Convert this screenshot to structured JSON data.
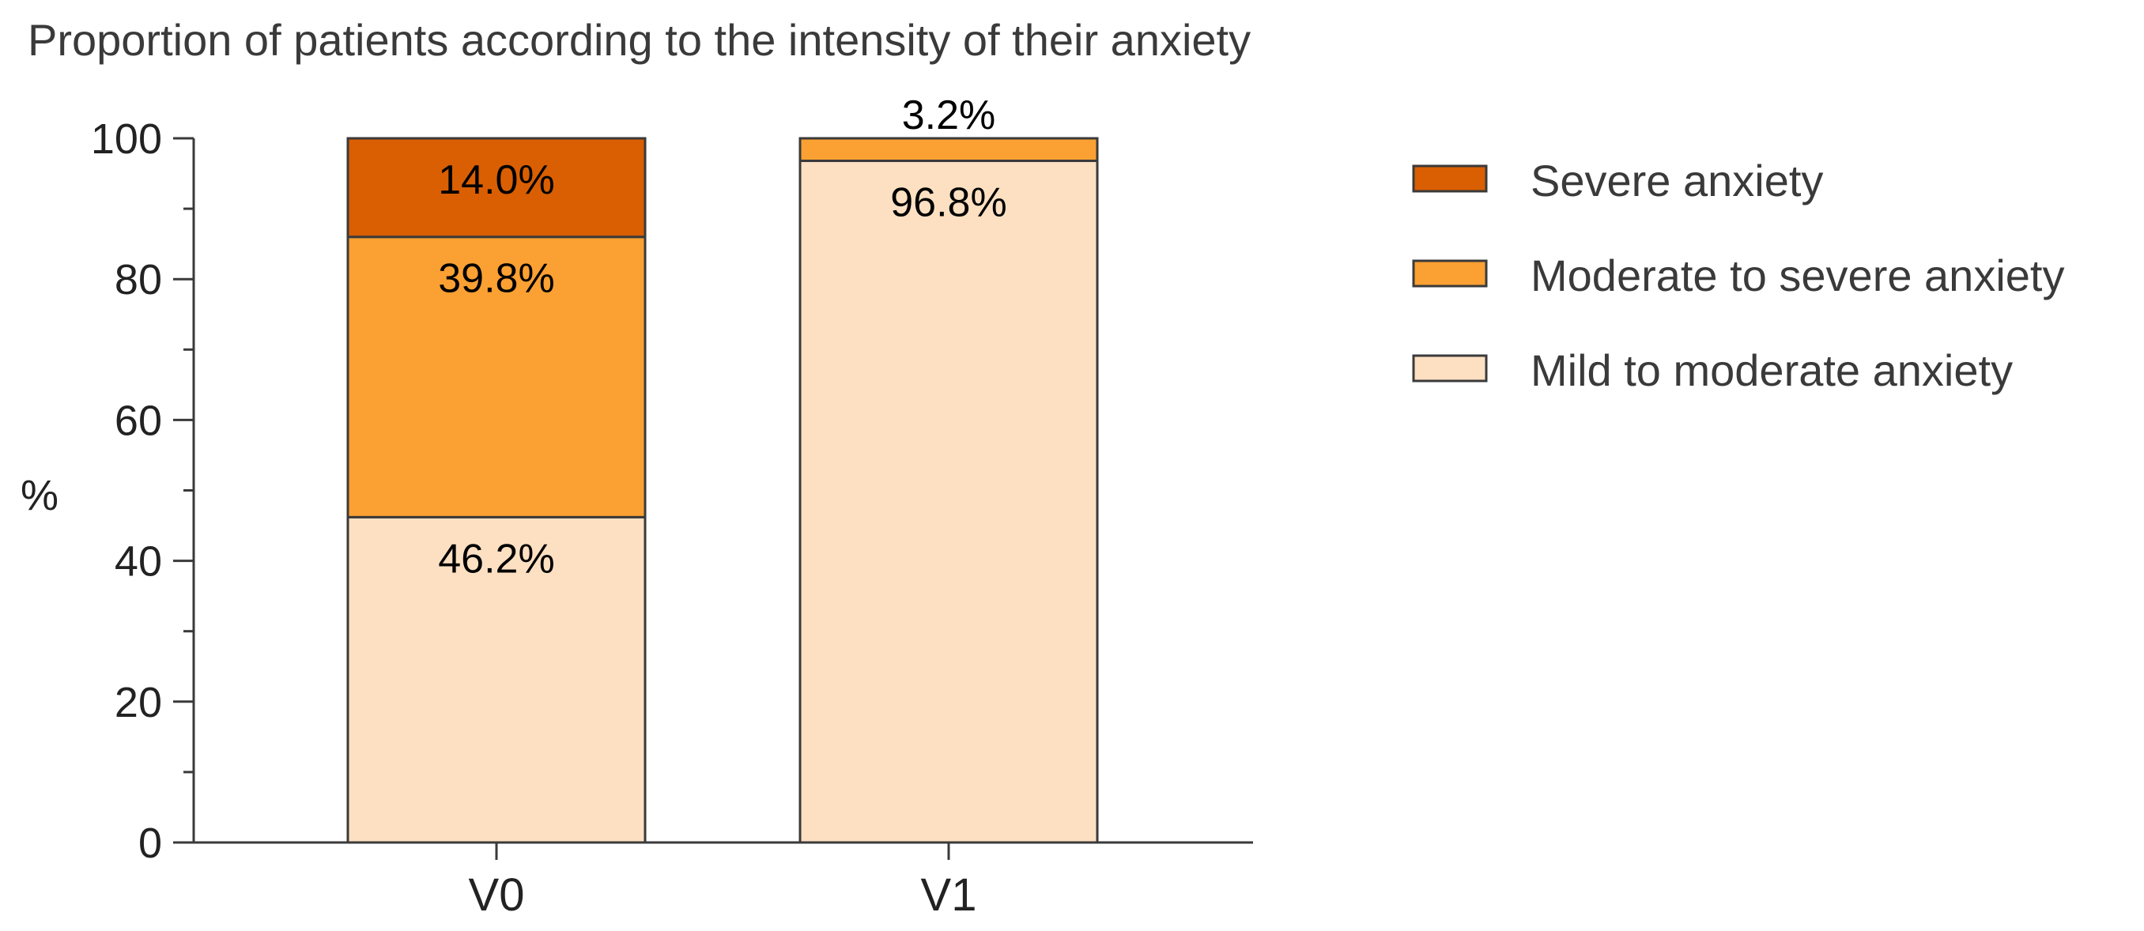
{
  "chart_data": {
    "type": "bar",
    "stacked": true,
    "title": "Proportion of patients according to the intensity of their anxiety",
    "xlabel": "",
    "ylabel": "%",
    "ylim": [
      0,
      100
    ],
    "yticks": [
      0,
      20,
      40,
      60,
      80,
      100
    ],
    "ytick_labels": [
      "0",
      "20",
      "40",
      "60",
      "80",
      "100"
    ],
    "categories": [
      "V0",
      "V1"
    ],
    "series": [
      {
        "name": "Mild to moderate anxiety",
        "color": "#fde0c2",
        "values": [
          46.2,
          96.8
        ],
        "labels": [
          "46.2%",
          "96.8%"
        ]
      },
      {
        "name": "Moderate to severe anxiety",
        "color": "#fba032",
        "values": [
          39.8,
          3.2
        ],
        "labels": [
          "39.8%",
          "3.2%"
        ]
      },
      {
        "name": "Severe anxiety",
        "color": "#d95f02",
        "values": [
          14.0,
          0
        ],
        "labels": [
          "14.0%",
          ""
        ]
      }
    ],
    "legend": {
      "position": "right",
      "order": [
        "Severe anxiety",
        "Moderate to severe anxiety",
        "Mild to moderate anxiety"
      ]
    },
    "grid": false
  }
}
